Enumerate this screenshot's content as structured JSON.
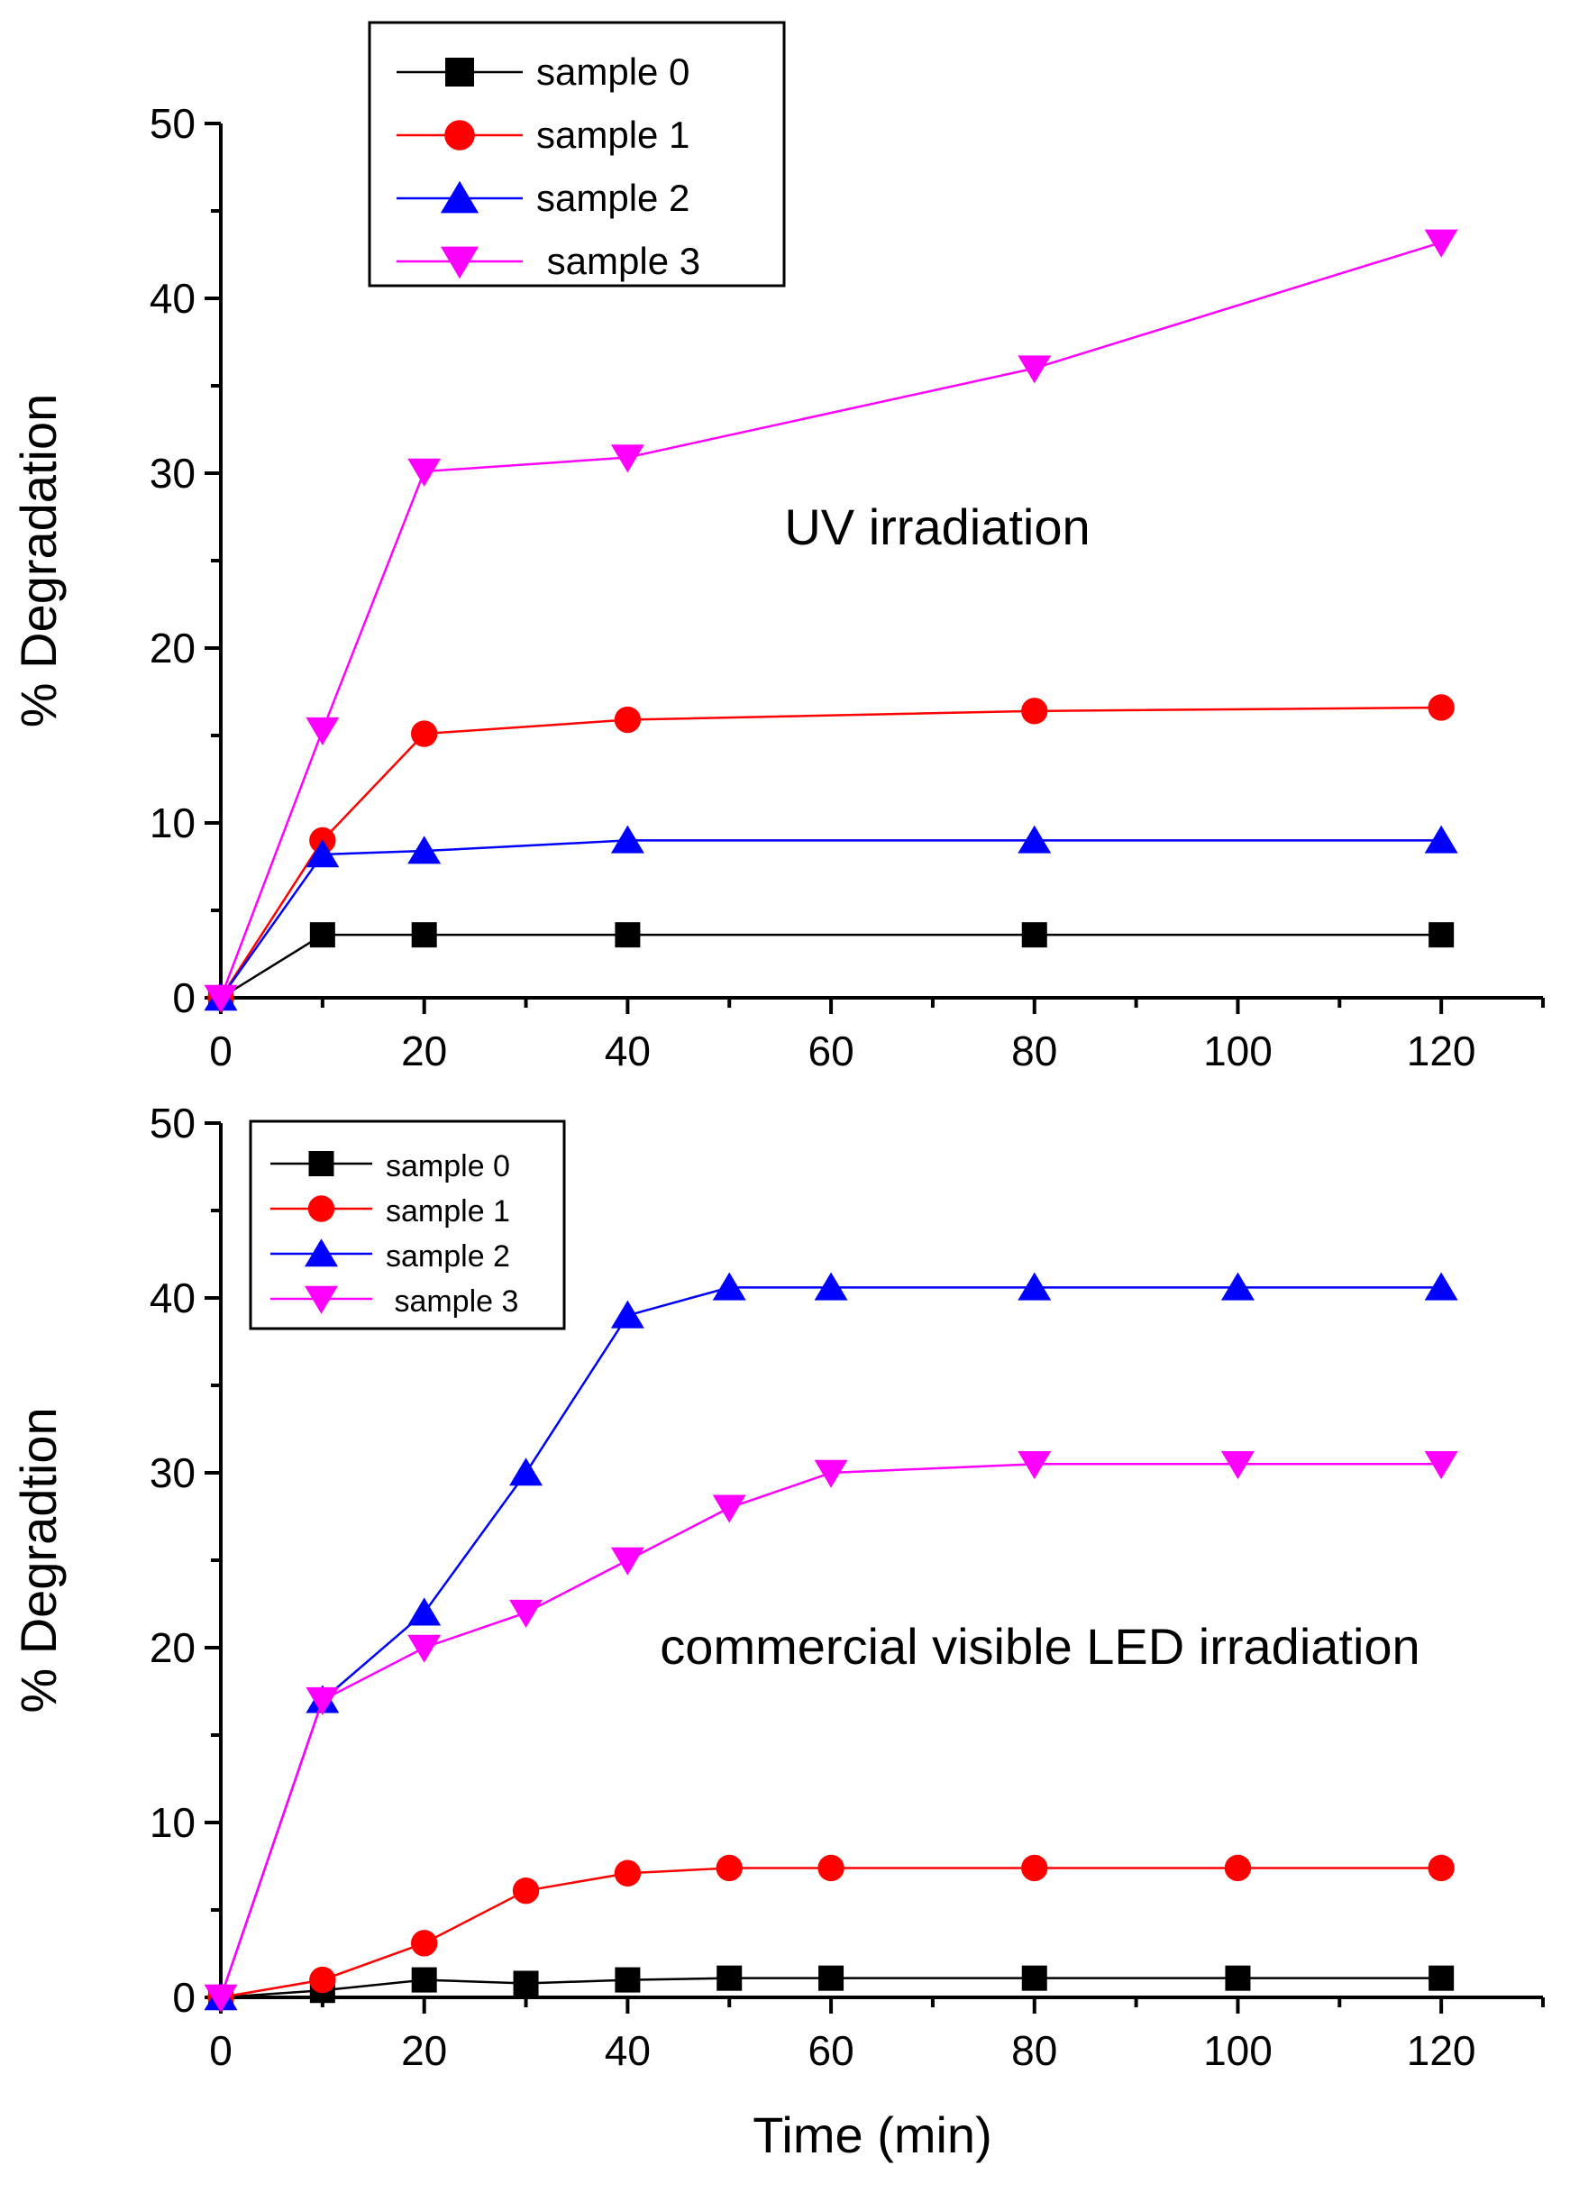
{
  "chart_data": [
    {
      "type": "line",
      "title": "",
      "annotation": "UV irradiation",
      "xlabel": "",
      "ylabel": "% Degradation",
      "xlim": [
        0,
        130
      ],
      "ylim": [
        0,
        50
      ],
      "xticks": [
        0,
        20,
        40,
        60,
        80,
        100,
        120
      ],
      "yticks": [
        0,
        10,
        20,
        30,
        40,
        50
      ],
      "grid": false,
      "legend_position": "top-left",
      "series": [
        {
          "name": "sample 0",
          "color": "#000000",
          "marker": "square",
          "x": [
            0,
            10,
            20,
            40,
            80,
            120
          ],
          "y": [
            0,
            3.6,
            3.6,
            3.6,
            3.6,
            3.6
          ]
        },
        {
          "name": "sample 1",
          "color": "#ff0000",
          "marker": "circle",
          "x": [
            0,
            10,
            20,
            40,
            80,
            120
          ],
          "y": [
            0,
            9.0,
            15.1,
            15.9,
            16.4,
            16.6
          ]
        },
        {
          "name": "sample 2",
          "color": "#0000ff",
          "marker": "triangle-up",
          "x": [
            0,
            10,
            20,
            40,
            80,
            120
          ],
          "y": [
            0,
            8.2,
            8.4,
            9.0,
            9.0,
            9.0
          ]
        },
        {
          "name": " sample 3",
          "color": "#ff00ff",
          "marker": "triangle-down",
          "x": [
            0,
            10,
            20,
            40,
            80,
            120
          ],
          "y": [
            0,
            15.3,
            30.1,
            30.9,
            36.0,
            43.2
          ]
        }
      ]
    },
    {
      "type": "line",
      "title": "",
      "annotation": "commercial visible LED  irradiation",
      "xlabel": "Time (min)",
      "ylabel": "% Degradtion",
      "xlim": [
        0,
        130
      ],
      "ylim": [
        0,
        50
      ],
      "xticks": [
        0,
        20,
        40,
        60,
        80,
        100,
        120
      ],
      "yticks": [
        0,
        10,
        20,
        30,
        40,
        50
      ],
      "grid": false,
      "legend_position": "top-left",
      "series": [
        {
          "name": "sample 0",
          "color": "#000000",
          "marker": "square",
          "x": [
            0,
            10,
            20,
            30,
            40,
            50,
            60,
            80,
            100,
            120
          ],
          "y": [
            0,
            0.4,
            1.0,
            0.8,
            1.0,
            1.1,
            1.1,
            1.1,
            1.1,
            1.1
          ]
        },
        {
          "name": "sample 1",
          "color": "#ff0000",
          "marker": "circle",
          "x": [
            0,
            10,
            20,
            30,
            40,
            50,
            60,
            80,
            100,
            120
          ],
          "y": [
            0,
            1.0,
            3.1,
            6.1,
            7.1,
            7.4,
            7.4,
            7.4,
            7.4,
            7.4
          ]
        },
        {
          "name": "sample 2",
          "color": "#0000ff",
          "marker": "triangle-up",
          "x": [
            0,
            10,
            20,
            30,
            40,
            50,
            60,
            80,
            100,
            120
          ],
          "y": [
            0,
            17.0,
            22.0,
            30.0,
            39.0,
            40.6,
            40.6,
            40.6,
            40.6,
            40.6
          ]
        },
        {
          "name": " sample 3",
          "color": "#ff00ff",
          "marker": "triangle-down",
          "x": [
            0,
            10,
            20,
            30,
            40,
            50,
            60,
            80,
            100,
            120
          ],
          "y": [
            0,
            17.0,
            20.0,
            22.0,
            25.0,
            28.0,
            30.0,
            30.5,
            30.5,
            30.5
          ]
        }
      ]
    }
  ]
}
